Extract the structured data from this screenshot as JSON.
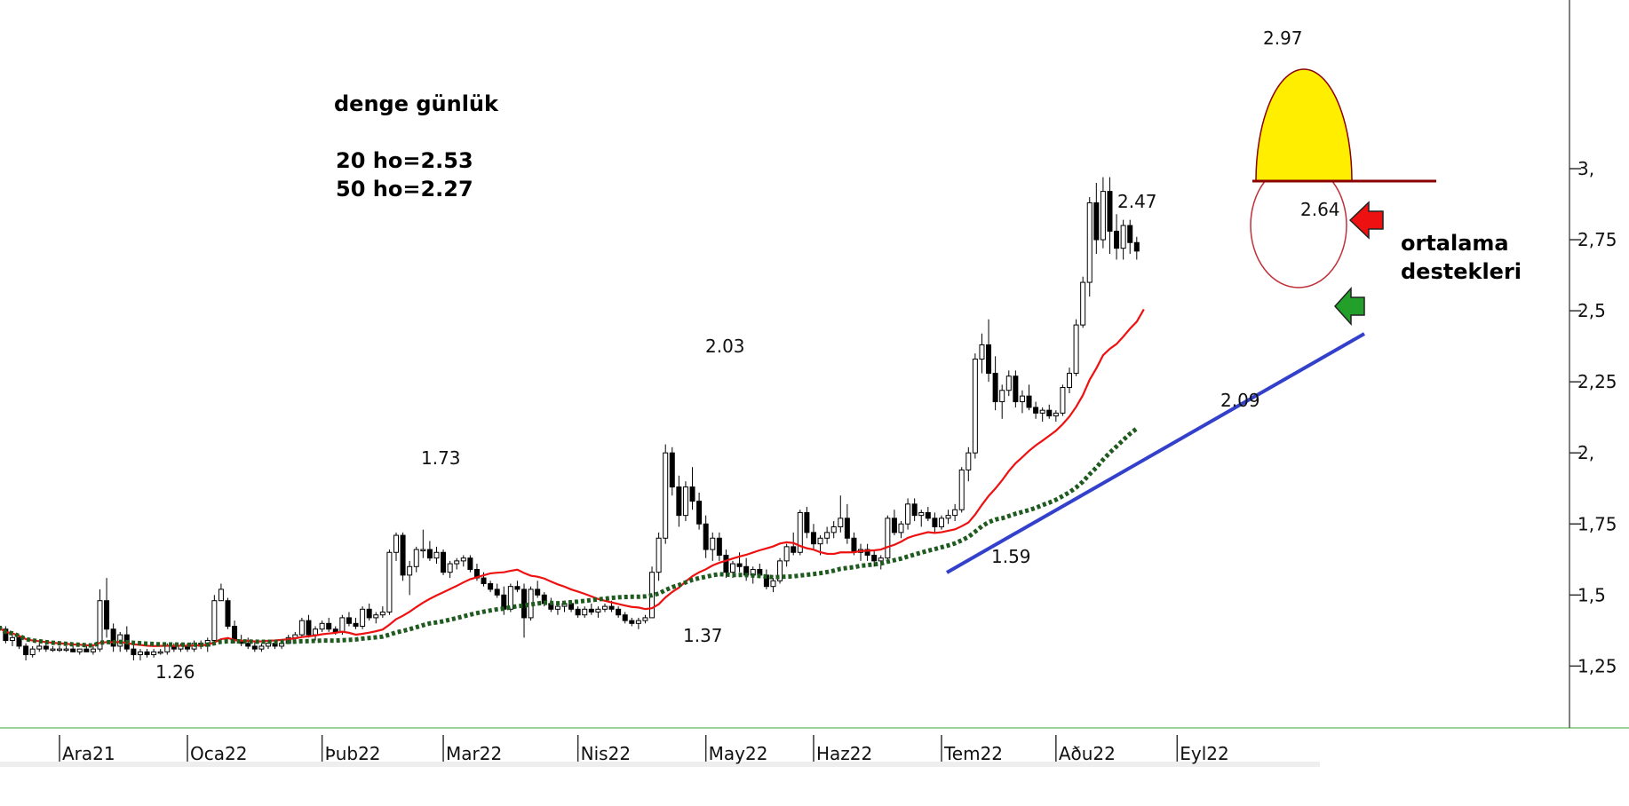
{
  "chart_data": {
    "type": "candlestick",
    "y_ticks": [
      "1,25",
      "1,5",
      "1,75",
      "2,",
      "2,25",
      "2,5",
      "2,75",
      "3,"
    ],
    "y_tick_values": [
      1.25,
      1.5,
      1.75,
      2.0,
      2.25,
      2.5,
      2.75,
      3.0
    ],
    "ylim": [
      1.09,
      3.22
    ],
    "x_ticks": [
      "Ara21",
      "Oca22",
      "Þub22",
      "Mar22",
      "Nis22",
      "May22",
      "Haz22",
      "Tem22",
      "Aðu22",
      "Eyl22"
    ],
    "x_tick_positions": [
      0,
      19,
      39,
      57,
      77,
      96,
      112,
      131,
      148,
      166
    ],
    "candles": [
      [
        -10,
        1.38,
        1.41,
        1.36,
        1.39
      ],
      [
        -9,
        1.39,
        1.41,
        1.37,
        1.38
      ],
      [
        -8,
        1.38,
        1.39,
        1.33,
        1.34
      ],
      [
        -7,
        1.34,
        1.36,
        1.32,
        1.35
      ],
      [
        -6,
        1.35,
        1.36,
        1.31,
        1.32
      ],
      [
        -5,
        1.32,
        1.33,
        1.27,
        1.29
      ],
      [
        -4,
        1.29,
        1.32,
        1.28,
        1.31
      ],
      [
        -3,
        1.31,
        1.33,
        1.3,
        1.32
      ],
      [
        -2,
        1.32,
        1.33,
        1.3,
        1.31
      ],
      [
        -1,
        1.31,
        1.32,
        1.3,
        1.31
      ],
      [
        0,
        1.31,
        1.32,
        1.3,
        1.31
      ],
      [
        1,
        1.31,
        1.32,
        1.3,
        1.31
      ],
      [
        2,
        1.31,
        1.32,
        1.3,
        1.3
      ],
      [
        3,
        1.3,
        1.31,
        1.29,
        1.31
      ],
      [
        4,
        1.31,
        1.32,
        1.3,
        1.3
      ],
      [
        5,
        1.3,
        1.32,
        1.29,
        1.31
      ],
      [
        6,
        1.31,
        1.52,
        1.3,
        1.48
      ],
      [
        7,
        1.48,
        1.56,
        1.35,
        1.38
      ],
      [
        8,
        1.38,
        1.4,
        1.3,
        1.32
      ],
      [
        9,
        1.32,
        1.37,
        1.3,
        1.36
      ],
      [
        10,
        1.36,
        1.39,
        1.3,
        1.31
      ],
      [
        11,
        1.31,
        1.33,
        1.27,
        1.29
      ],
      [
        12,
        1.29,
        1.31,
        1.27,
        1.3
      ],
      [
        13,
        1.3,
        1.31,
        1.28,
        1.29
      ],
      [
        14,
        1.29,
        1.31,
        1.28,
        1.3
      ],
      [
        15,
        1.3,
        1.31,
        1.29,
        1.3
      ],
      [
        16,
        1.3,
        1.33,
        1.29,
        1.32
      ],
      [
        17,
        1.32,
        1.33,
        1.3,
        1.31
      ],
      [
        18,
        1.31,
        1.33,
        1.3,
        1.32
      ],
      [
        19,
        1.32,
        1.33,
        1.3,
        1.31
      ],
      [
        20,
        1.31,
        1.34,
        1.3,
        1.33
      ],
      [
        21,
        1.33,
        1.34,
        1.31,
        1.32
      ],
      [
        22,
        1.32,
        1.35,
        1.3,
        1.34
      ],
      [
        23,
        1.34,
        1.5,
        1.33,
        1.48
      ],
      [
        24,
        1.48,
        1.54,
        1.48,
        1.52
      ],
      [
        25,
        1.48,
        1.49,
        1.38,
        1.39
      ],
      [
        26,
        1.39,
        1.41,
        1.33,
        1.34
      ],
      [
        27,
        1.34,
        1.36,
        1.32,
        1.33
      ],
      [
        28,
        1.33,
        1.35,
        1.31,
        1.32
      ],
      [
        29,
        1.32,
        1.34,
        1.3,
        1.31
      ],
      [
        30,
        1.31,
        1.33,
        1.3,
        1.32
      ],
      [
        31,
        1.32,
        1.34,
        1.31,
        1.33
      ],
      [
        32,
        1.33,
        1.34,
        1.31,
        1.32
      ],
      [
        33,
        1.32,
        1.34,
        1.31,
        1.33
      ],
      [
        34,
        1.33,
        1.36,
        1.33,
        1.35
      ],
      [
        35,
        1.35,
        1.37,
        1.33,
        1.36
      ],
      [
        36,
        1.36,
        1.42,
        1.35,
        1.41
      ],
      [
        37,
        1.41,
        1.43,
        1.35,
        1.36
      ],
      [
        38,
        1.36,
        1.39,
        1.34,
        1.38
      ],
      [
        39,
        1.38,
        1.41,
        1.37,
        1.4
      ],
      [
        40,
        1.4,
        1.42,
        1.37,
        1.38
      ],
      [
        41,
        1.38,
        1.39,
        1.36,
        1.37
      ],
      [
        42,
        1.37,
        1.43,
        1.36,
        1.42
      ],
      [
        43,
        1.42,
        1.44,
        1.39,
        1.4
      ],
      [
        44,
        1.4,
        1.42,
        1.38,
        1.39
      ],
      [
        45,
        1.39,
        1.46,
        1.38,
        1.45
      ],
      [
        46,
        1.45,
        1.47,
        1.41,
        1.42
      ],
      [
        47,
        1.42,
        1.44,
        1.4,
        1.43
      ],
      [
        48,
        1.43,
        1.46,
        1.42,
        1.44
      ],
      [
        49,
        1.44,
        1.66,
        1.43,
        1.65
      ],
      [
        50,
        1.65,
        1.72,
        1.62,
        1.71
      ],
      [
        51,
        1.71,
        1.72,
        1.55,
        1.57
      ],
      [
        52,
        1.57,
        1.62,
        1.5,
        1.6
      ],
      [
        53,
        1.6,
        1.67,
        1.58,
        1.66
      ],
      [
        54,
        1.66,
        1.73,
        1.63,
        1.66
      ],
      [
        55,
        1.66,
        1.69,
        1.62,
        1.63
      ],
      [
        56,
        1.63,
        1.67,
        1.61,
        1.65
      ],
      [
        57,
        1.65,
        1.66,
        1.57,
        1.58
      ],
      [
        58,
        1.58,
        1.62,
        1.56,
        1.61
      ],
      [
        59,
        1.61,
        1.63,
        1.59,
        1.62
      ],
      [
        60,
        1.62,
        1.64,
        1.6,
        1.63
      ],
      [
        61,
        1.63,
        1.64,
        1.58,
        1.59
      ],
      [
        62,
        1.59,
        1.61,
        1.55,
        1.56
      ],
      [
        63,
        1.56,
        1.58,
        1.53,
        1.54
      ],
      [
        64,
        1.54,
        1.55,
        1.51,
        1.52
      ],
      [
        65,
        1.52,
        1.54,
        1.49,
        1.5
      ],
      [
        66,
        1.5,
        1.53,
        1.43,
        1.45
      ],
      [
        67,
        1.45,
        1.54,
        1.44,
        1.53
      ],
      [
        68,
        1.53,
        1.55,
        1.51,
        1.52
      ],
      [
        69,
        1.52,
        1.54,
        1.35,
        1.42
      ],
      [
        70,
        1.42,
        1.53,
        1.41,
        1.52
      ],
      [
        71,
        1.52,
        1.55,
        1.49,
        1.5
      ],
      [
        72,
        1.5,
        1.51,
        1.46,
        1.47
      ],
      [
        73,
        1.47,
        1.49,
        1.44,
        1.45
      ],
      [
        74,
        1.45,
        1.47,
        1.43,
        1.46
      ],
      [
        75,
        1.46,
        1.48,
        1.44,
        1.47
      ],
      [
        76,
        1.47,
        1.48,
        1.44,
        1.45
      ],
      [
        77,
        1.45,
        1.46,
        1.42,
        1.43
      ],
      [
        78,
        1.43,
        1.46,
        1.42,
        1.45
      ],
      [
        79,
        1.45,
        1.47,
        1.43,
        1.44
      ],
      [
        80,
        1.44,
        1.46,
        1.42,
        1.45
      ],
      [
        81,
        1.45,
        1.47,
        1.44,
        1.46
      ],
      [
        82,
        1.46,
        1.48,
        1.44,
        1.45
      ],
      [
        83,
        1.45,
        1.46,
        1.42,
        1.43
      ],
      [
        84,
        1.43,
        1.44,
        1.4,
        1.41
      ],
      [
        85,
        1.41,
        1.42,
        1.39,
        1.4
      ],
      [
        86,
        1.4,
        1.42,
        1.38,
        1.41
      ],
      [
        87,
        1.41,
        1.43,
        1.4,
        1.42
      ],
      [
        88,
        1.42,
        1.6,
        1.42,
        1.58
      ],
      [
        89,
        1.58,
        1.72,
        1.55,
        1.7
      ],
      [
        90,
        1.7,
        2.03,
        1.68,
        2.0
      ],
      [
        91,
        2.0,
        2.02,
        1.85,
        1.88
      ],
      [
        92,
        1.88,
        1.92,
        1.74,
        1.78
      ],
      [
        93,
        1.78,
        1.9,
        1.76,
        1.88
      ],
      [
        94,
        1.88,
        1.95,
        1.8,
        1.83
      ],
      [
        95,
        1.83,
        1.86,
        1.73,
        1.75
      ],
      [
        96,
        1.75,
        1.78,
        1.63,
        1.66
      ],
      [
        97,
        1.66,
        1.72,
        1.62,
        1.7
      ],
      [
        98,
        1.7,
        1.72,
        1.62,
        1.64
      ],
      [
        99,
        1.64,
        1.66,
        1.56,
        1.58
      ],
      [
        100,
        1.58,
        1.62,
        1.56,
        1.61
      ],
      [
        101,
        1.61,
        1.65,
        1.58,
        1.6
      ],
      [
        102,
        1.6,
        1.63,
        1.55,
        1.57
      ],
      [
        103,
        1.57,
        1.6,
        1.54,
        1.59
      ],
      [
        104,
        1.59,
        1.61,
        1.56,
        1.57
      ],
      [
        105,
        1.57,
        1.59,
        1.52,
        1.53
      ],
      [
        106,
        1.53,
        1.56,
        1.51,
        1.55
      ],
      [
        107,
        1.55,
        1.63,
        1.54,
        1.62
      ],
      [
        108,
        1.62,
        1.68,
        1.6,
        1.67
      ],
      [
        109,
        1.67,
        1.72,
        1.64,
        1.65
      ],
      [
        110,
        1.65,
        1.8,
        1.64,
        1.79
      ],
      [
        111,
        1.79,
        1.81,
        1.7,
        1.72
      ],
      [
        112,
        1.72,
        1.75,
        1.66,
        1.68
      ],
      [
        113,
        1.68,
        1.71,
        1.64,
        1.7
      ],
      [
        114,
        1.7,
        1.74,
        1.68,
        1.72
      ],
      [
        115,
        1.72,
        1.76,
        1.7,
        1.74
      ],
      [
        116,
        1.74,
        1.85,
        1.72,
        1.77
      ],
      [
        117,
        1.77,
        1.82,
        1.68,
        1.7
      ],
      [
        118,
        1.7,
        1.72,
        1.64,
        1.65
      ],
      [
        119,
        1.65,
        1.68,
        1.62,
        1.66
      ],
      [
        120,
        1.66,
        1.68,
        1.62,
        1.64
      ],
      [
        121,
        1.64,
        1.66,
        1.6,
        1.62
      ],
      [
        122,
        1.62,
        1.64,
        1.59,
        1.63
      ],
      [
        123,
        1.63,
        1.78,
        1.62,
        1.77
      ],
      [
        124,
        1.77,
        1.8,
        1.71,
        1.72
      ],
      [
        125,
        1.72,
        1.76,
        1.7,
        1.75
      ],
      [
        126,
        1.75,
        1.84,
        1.73,
        1.82
      ],
      [
        127,
        1.82,
        1.84,
        1.76,
        1.78
      ],
      [
        128,
        1.78,
        1.8,
        1.74,
        1.79
      ],
      [
        129,
        1.79,
        1.81,
        1.76,
        1.77
      ],
      [
        130,
        1.77,
        1.79,
        1.72,
        1.74
      ],
      [
        131,
        1.74,
        1.78,
        1.73,
        1.77
      ],
      [
        132,
        1.77,
        1.8,
        1.75,
        1.78
      ],
      [
        133,
        1.78,
        1.82,
        1.76,
        1.8
      ],
      [
        134,
        1.8,
        1.95,
        1.79,
        1.94
      ],
      [
        135,
        1.94,
        2.02,
        1.9,
        2.0
      ],
      [
        136,
        2.0,
        2.35,
        1.98,
        2.33
      ],
      [
        137,
        2.33,
        2.42,
        2.28,
        2.38
      ],
      [
        138,
        2.38,
        2.47,
        2.25,
        2.28
      ],
      [
        139,
        2.28,
        2.34,
        2.15,
        2.18
      ],
      [
        140,
        2.18,
        2.24,
        2.12,
        2.22
      ],
      [
        141,
        2.22,
        2.29,
        2.2,
        2.27
      ],
      [
        142,
        2.27,
        2.29,
        2.16,
        2.18
      ],
      [
        143,
        2.18,
        2.22,
        2.14,
        2.2
      ],
      [
        144,
        2.2,
        2.24,
        2.15,
        2.16
      ],
      [
        145,
        2.16,
        2.18,
        2.12,
        2.14
      ],
      [
        146,
        2.14,
        2.16,
        2.11,
        2.15
      ],
      [
        147,
        2.15,
        2.17,
        2.12,
        2.13
      ],
      [
        148,
        2.13,
        2.15,
        2.11,
        2.14
      ],
      [
        149,
        2.14,
        2.24,
        2.13,
        2.23
      ],
      [
        150,
        2.23,
        2.3,
        2.21,
        2.28
      ],
      [
        151,
        2.28,
        2.47,
        2.27,
        2.45
      ],
      [
        152,
        2.45,
        2.62,
        2.44,
        2.6
      ],
      [
        153,
        2.6,
        2.9,
        2.55,
        2.88
      ],
      [
        154,
        2.88,
        2.95,
        2.7,
        2.75
      ],
      [
        155,
        2.75,
        2.97,
        2.72,
        2.92
      ],
      [
        156,
        2.92,
        2.97,
        2.7,
        2.78
      ],
      [
        157,
        2.78,
        2.84,
        2.68,
        2.72
      ],
      [
        158,
        2.72,
        2.82,
        2.68,
        2.8
      ],
      [
        159,
        2.8,
        2.82,
        2.7,
        2.74
      ],
      [
        160,
        2.74,
        2.76,
        2.68,
        2.71
      ]
    ],
    "ma20_label": "20 ho=2.53",
    "ma50_label": "50 ho=2.27",
    "ma20_color": "#ee1111",
    "ma50_color": "#1f5a1f",
    "support_line_color": "#3340cc",
    "resistance_line_color": "#8b0000",
    "highlight_color": "#ffee00",
    "grid": false
  },
  "annotations": {
    "title": "denge günlük",
    "ma20": "20 ho=2.53",
    "ma50": "50 ho=2.27",
    "note_line1": "ortalama",
    "note_line2": "destekleri",
    "labels": [
      "2.97",
      "2.47",
      "2.64",
      "2.09",
      "2.03",
      "1.73",
      "1.59",
      "1.37",
      "1.26"
    ]
  }
}
